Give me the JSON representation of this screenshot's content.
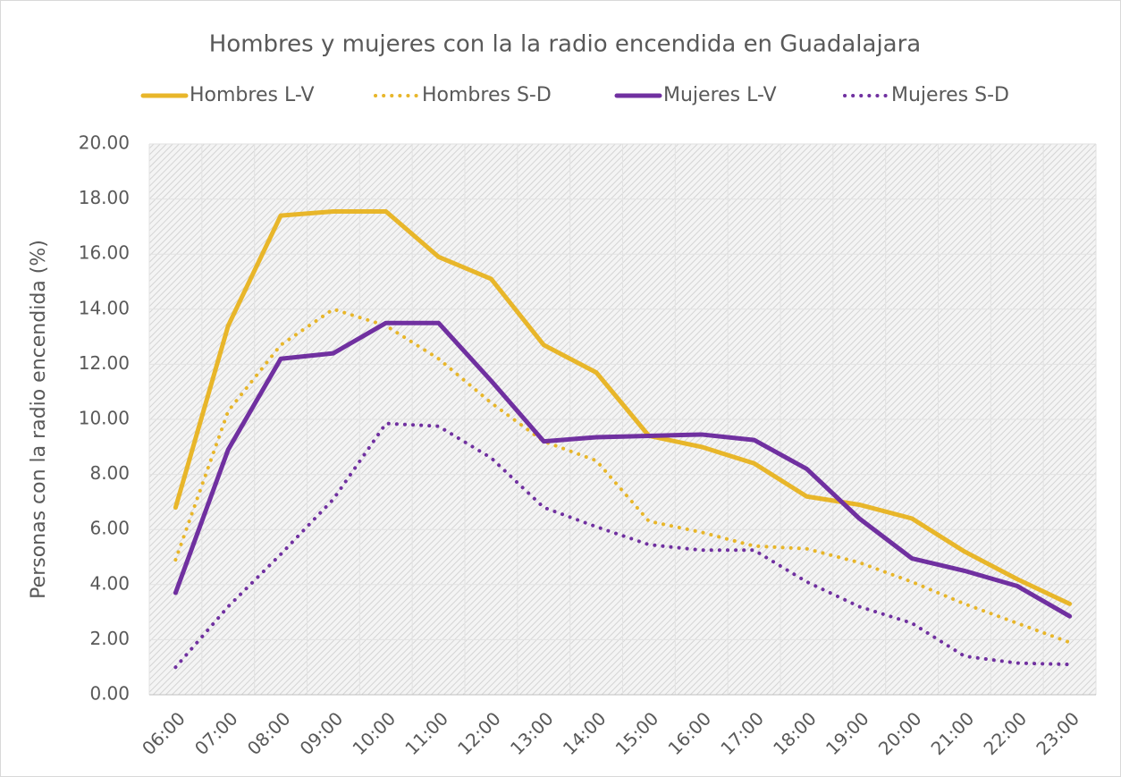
{
  "chart_data": {
    "type": "line",
    "title": "Hombres y mujeres con la la radio encendida en Guadalajara",
    "y_label": "Personas con la radio encendida (%)",
    "categories": [
      "06:00",
      "07:00",
      "08:00",
      "09:00",
      "10:00",
      "11:00",
      "12:00",
      "13:00",
      "14:00",
      "15:00",
      "16:00",
      "17:00",
      "18:00",
      "19:00",
      "20:00",
      "21:00",
      "22:00",
      "23:00"
    ],
    "series": [
      {
        "name": "Hombres L-V",
        "color": "#e8b62a",
        "dash": "solid",
        "values": [
          6.8,
          13.4,
          17.4,
          17.55,
          17.55,
          15.9,
          15.1,
          12.7,
          11.7,
          9.4,
          9.0,
          8.4,
          7.2,
          6.9,
          6.4,
          5.2,
          4.2,
          3.3
        ]
      },
      {
        "name": "Hombres S-D",
        "color": "#e8b62a",
        "dash": "dotted",
        "values": [
          4.9,
          10.3,
          12.7,
          14.0,
          13.4,
          12.2,
          10.6,
          9.2,
          8.5,
          6.3,
          5.9,
          5.4,
          5.3,
          4.8,
          4.1,
          3.3,
          2.6,
          1.9
        ]
      },
      {
        "name": "Mujeres L-V",
        "color": "#7030a0",
        "dash": "solid",
        "values": [
          3.7,
          8.9,
          12.2,
          12.4,
          13.5,
          13.5,
          11.4,
          9.2,
          9.35,
          9.4,
          9.45,
          9.25,
          8.2,
          6.4,
          4.95,
          4.5,
          3.95,
          2.85
        ]
      },
      {
        "name": "Mujeres S-D",
        "color": "#7030a0",
        "dash": "dotted",
        "values": [
          1.0,
          3.2,
          5.1,
          7.1,
          9.85,
          9.75,
          8.6,
          6.8,
          6.1,
          5.45,
          5.25,
          5.25,
          4.1,
          3.2,
          2.6,
          1.4,
          1.15,
          1.1
        ]
      }
    ],
    "ylim": [
      0,
      20
    ],
    "yticks": [
      {
        "value": 0,
        "label": "0.00"
      },
      {
        "value": 2,
        "label": "2.00"
      },
      {
        "value": 4,
        "label": "4.00"
      },
      {
        "value": 6,
        "label": "6.00"
      },
      {
        "value": 8,
        "label": "8.00"
      },
      {
        "value": 10,
        "label": "10.00"
      },
      {
        "value": 12,
        "label": "12.00"
      },
      {
        "value": 14,
        "label": "14.00"
      },
      {
        "value": 16,
        "label": "16.00"
      },
      {
        "value": 18,
        "label": "18.00"
      },
      {
        "value": 20,
        "label": "20.00"
      }
    ],
    "grid": true,
    "legend": "top"
  }
}
